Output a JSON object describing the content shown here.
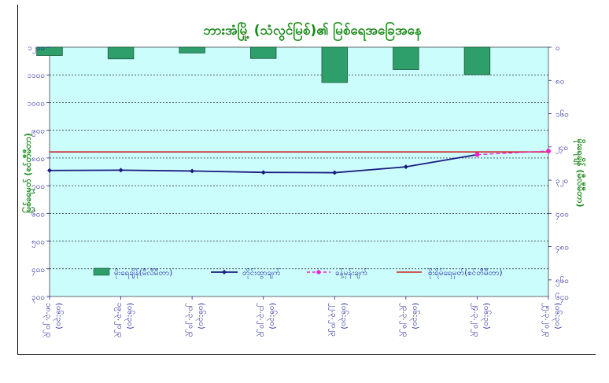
{
  "chart_data": {
    "type": "bar+line",
    "title": "ဘားအံမြို့ (သံလွင်မြစ်)၏ မြစ်ရေအခြေအနေ",
    "ylabel_left": "မြစ်ရေမှတ် (စင်တီမီတာ)",
    "ylabel_right": "မိုးရေချိန် (မီလီမီတာ)",
    "left_axis": {
      "min": 300,
      "max": 1200,
      "ticks": [
        "၃၀၀",
        "၄၀၀",
        "၅၀၀",
        "၆၀၀",
        "၇၀၀",
        "၈၀၀",
        "၉၀၀",
        "၁၀၀၀",
        "၁၁၀၀",
        "၁၂၀၀"
      ]
    },
    "right_axis": {
      "min": 0,
      "max": 600,
      "inverted": true,
      "ticks": [
        "၀",
        "၈၀",
        "၁၆၀",
        "၂၄၀",
        "၃၂၀",
        "၄၀၀",
        "၄၈၀",
        "၅၆၀",
        "၆၄၀"
      ],
      "tick_values": [
        0,
        80,
        160,
        240,
        320,
        400,
        480,
        560,
        640
      ]
    },
    "categories": [
      [
        "၁၈.၃.၂၀၂၃",
        "(၀၆:၃၀)"
      ],
      [
        "၁၉.၃.၂၀၂၃",
        "(၀၆:၃၀)"
      ],
      [
        "၂၀.၃.၂၀၂၃",
        "(၀၆:၃၀)"
      ],
      [
        "၂၁.၃.၂၀၂၃",
        "(၀၆:၃၀)"
      ],
      [
        "၂၂.၃.၂၀၂၃",
        "(၀၆:၃၀)"
      ],
      [
        "၂၃.၃.၂၀၂၃",
        "(၀၆:၃၀)"
      ],
      [
        "၂၄.၃.၂၀၂၃",
        "(၀၆:၃၀)"
      ],
      [
        "၂၅.၃.၂၀၂၃",
        "(၀၆:၃၀)"
      ]
    ],
    "series": [
      {
        "name": "မိုးရေချိန်(မီလီမီတာ)",
        "type": "bar",
        "axis": "right",
        "color": "#2e9e6b",
        "values": [
          20,
          28,
          14,
          27,
          85,
          54,
          66,
          null
        ]
      },
      {
        "name": "တိုင်းထွာချက်",
        "type": "line",
        "axis": "left",
        "color": "#1b1b80",
        "values": [
          755,
          756,
          753,
          748,
          747,
          768,
          812,
          null
        ]
      },
      {
        "name": "ခန့်မှန်းချက်",
        "type": "line",
        "axis": "left",
        "dashed": true,
        "color": "#ee22cc",
        "values": [
          null,
          null,
          null,
          null,
          null,
          null,
          812,
          825
        ]
      },
      {
        "name": "စိုးရိမ်ရေမှတ်(စင်တီမီတာ)",
        "type": "hline",
        "axis": "left",
        "color": "#cc2222",
        "value": 822
      }
    ],
    "grid": "horizontal dashed",
    "plot_background": "#ccfdfd",
    "legend_position": "inside-bottom"
  }
}
